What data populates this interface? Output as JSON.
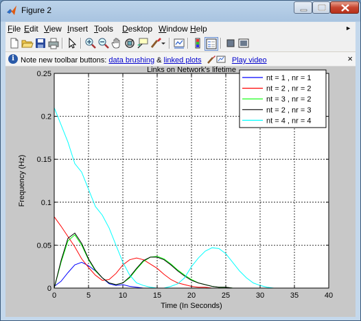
{
  "window": {
    "title": "Figure 2"
  },
  "menu": [
    "File",
    "Edit",
    "View",
    "Insert",
    "Tools",
    "Desktop",
    "Window",
    "Help"
  ],
  "menu_underline": [
    "F",
    "E",
    "V",
    "I",
    "T",
    "D",
    "W",
    "H"
  ],
  "infobar": {
    "prefix": "Note new toolbar buttons: ",
    "link1": "data brushing",
    "amp": " & ",
    "link2": "linked plots",
    "link3": "Play video",
    "close": "×"
  },
  "toolbar_icons": [
    "new-figure-icon",
    "open-file-icon",
    "save-icon",
    "print-icon",
    "edit-plot-arrow-icon",
    "zoom-in-icon",
    "zoom-out-icon",
    "pan-hand-icon",
    "rotate-3d-icon",
    "data-cursor-icon",
    "brush-icon",
    "brush-dropdown-icon",
    "link-plot-icon",
    "insert-colorbar-icon",
    "insert-legend-icon",
    "hide-plot-tools-icon",
    "show-plot-tools-icon"
  ],
  "colors": {
    "nt1nr1": "#0000ff",
    "nt2nr2": "#ff0000",
    "nt3nr2": "#00ff00",
    "nt2nr3": "#000000",
    "nt4nr4": "#00ffff"
  },
  "chart_data": {
    "type": "line",
    "title": "Links on Network's lifetime",
    "xlabel": "Time (In Seconds)",
    "ylabel": "Frequency (Hz)",
    "xlim": [
      0,
      40
    ],
    "ylim": [
      0,
      0.25
    ],
    "xticks": [
      0,
      5,
      10,
      15,
      20,
      25,
      30,
      35,
      40
    ],
    "yticks": [
      0,
      0.05,
      0.1,
      0.15,
      0.2,
      0.25
    ],
    "ytick_labels": [
      "0",
      "0.05",
      "0.1",
      "0.15",
      "0.2",
      "0.25"
    ],
    "grid": true,
    "legend_position": "top-right",
    "series": [
      {
        "name": "nt = 1 , nr = 1",
        "color": "#0000ff",
        "x": [
          0,
          1,
          2,
          3,
          4,
          5,
          6,
          7,
          8,
          9,
          10,
          11,
          12,
          13,
          14,
          15
        ],
        "y": [
          0.002,
          0.008,
          0.018,
          0.027,
          0.03,
          0.026,
          0.02,
          0.012,
          0.005,
          0.003,
          0.004,
          0.002,
          0.001,
          0.0,
          0.0,
          0.0
        ]
      },
      {
        "name": "nt = 2 , nr = 2",
        "color": "#ff0000",
        "x": [
          0,
          1,
          2,
          3,
          4,
          5,
          6,
          7,
          8,
          9,
          10,
          11,
          12,
          13,
          14,
          15,
          16,
          17,
          18,
          19,
          20,
          21,
          22,
          23,
          24,
          25
        ],
        "y": [
          0.083,
          0.072,
          0.06,
          0.048,
          0.034,
          0.024,
          0.015,
          0.009,
          0.01,
          0.017,
          0.027,
          0.033,
          0.035,
          0.033,
          0.028,
          0.023,
          0.016,
          0.01,
          0.006,
          0.004,
          0.002,
          0.001,
          0.001,
          0.0,
          0.0,
          0.0
        ]
      },
      {
        "name": "nt = 3 , nr = 2",
        "color": "#00ff00",
        "x": [
          0,
          1,
          2,
          3,
          4,
          5,
          6,
          7,
          8,
          9,
          10,
          11,
          12,
          13,
          14,
          15,
          16,
          17,
          18,
          19,
          20,
          21,
          22,
          23,
          24,
          25,
          26,
          27,
          28,
          29,
          30
        ],
        "y": [
          0.0,
          0.03,
          0.055,
          0.062,
          0.05,
          0.033,
          0.02,
          0.012,
          0.006,
          0.004,
          0.006,
          0.012,
          0.022,
          0.031,
          0.036,
          0.037,
          0.034,
          0.028,
          0.021,
          0.015,
          0.01,
          0.006,
          0.004,
          0.002,
          0.001,
          0.001,
          0.0,
          0.0,
          0.0,
          0.0,
          0.0
        ]
      },
      {
        "name": "nt = 2 , nr = 3",
        "color": "#000000",
        "x": [
          0,
          1,
          2,
          3,
          4,
          5,
          6,
          7,
          8,
          9,
          10,
          11,
          12,
          13,
          14,
          15,
          16,
          17,
          18,
          19,
          20,
          21,
          22,
          23,
          24,
          25,
          26,
          27,
          28,
          29,
          30
        ],
        "y": [
          0.0,
          0.032,
          0.058,
          0.064,
          0.052,
          0.034,
          0.021,
          0.012,
          0.006,
          0.004,
          0.006,
          0.013,
          0.023,
          0.032,
          0.036,
          0.036,
          0.033,
          0.027,
          0.02,
          0.014,
          0.009,
          0.006,
          0.004,
          0.002,
          0.001,
          0.001,
          0.0,
          0.0,
          0.0,
          0.0,
          0.0
        ]
      },
      {
        "name": "nt = 4 , nr = 4",
        "color": "#00ffff",
        "x": [
          0,
          1,
          2,
          3,
          4,
          5,
          6,
          7,
          8,
          9,
          10,
          11,
          12,
          13,
          14,
          15,
          16,
          17,
          18,
          19,
          20,
          21,
          22,
          23,
          24,
          25,
          26,
          27,
          28,
          29,
          30,
          31,
          32,
          33,
          34,
          35
        ],
        "y": [
          0.21,
          0.19,
          0.17,
          0.145,
          0.135,
          0.115,
          0.095,
          0.085,
          0.07,
          0.05,
          0.03,
          0.015,
          0.006,
          0.003,
          0.001,
          0.0,
          0.0,
          0.002,
          0.005,
          0.012,
          0.025,
          0.035,
          0.043,
          0.047,
          0.046,
          0.04,
          0.03,
          0.02,
          0.012,
          0.006,
          0.003,
          0.001,
          0.0,
          0.0,
          0.0,
          0.0
        ]
      }
    ]
  }
}
